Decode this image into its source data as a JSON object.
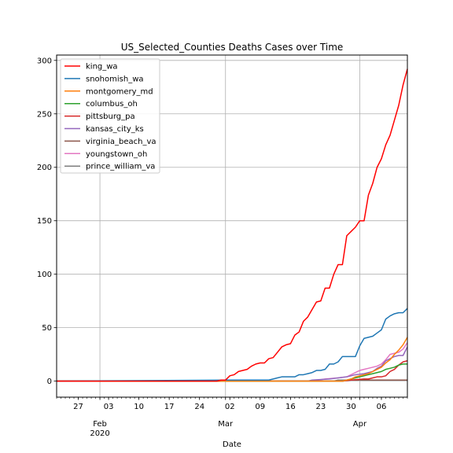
{
  "chart_data": {
    "type": "line",
    "title": "US_Selected_Counties Deaths Cases over Time",
    "xlabel": "Date",
    "ylabel": "",
    "x_start": "2020-01-22",
    "x_end": "2020-04-12",
    "xlim": [
      "2020-01-22",
      "2020-04-12"
    ],
    "ylim": [
      -15,
      305
    ],
    "y_ticks": [
      0,
      50,
      100,
      150,
      200,
      250,
      300
    ],
    "x_minor_ticks": [
      {
        "date": "2020-01-27",
        "label": "27"
      },
      {
        "date": "2020-02-03",
        "label": "03"
      },
      {
        "date": "2020-02-10",
        "label": "10"
      },
      {
        "date": "2020-02-17",
        "label": "17"
      },
      {
        "date": "2020-02-24",
        "label": "24"
      },
      {
        "date": "2020-03-02",
        "label": "02"
      },
      {
        "date": "2020-03-09",
        "label": "09"
      },
      {
        "date": "2020-03-16",
        "label": "16"
      },
      {
        "date": "2020-03-23",
        "label": "23"
      },
      {
        "date": "2020-03-30",
        "label": "30"
      },
      {
        "date": "2020-04-06",
        "label": "06"
      }
    ],
    "x_major_ticks": [
      {
        "date": "2020-02-01",
        "label": "Feb",
        "sublabel": "2020"
      },
      {
        "date": "2020-03-01",
        "label": "Mar",
        "sublabel": ""
      },
      {
        "date": "2020-04-01",
        "label": "Apr",
        "sublabel": ""
      }
    ],
    "grid": true,
    "legend_position": "top-left",
    "series": [
      {
        "name": "king_wa",
        "color": "#ff0000",
        "points": [
          [
            "2020-01-22",
            0
          ],
          [
            "2020-02-28",
            0
          ],
          [
            "2020-02-29",
            1
          ],
          [
            "2020-03-01",
            1
          ],
          [
            "2020-03-02",
            5
          ],
          [
            "2020-03-03",
            6
          ],
          [
            "2020-03-04",
            9
          ],
          [
            "2020-03-05",
            10
          ],
          [
            "2020-03-06",
            11
          ],
          [
            "2020-03-07",
            14
          ],
          [
            "2020-03-08",
            16
          ],
          [
            "2020-03-09",
            17
          ],
          [
            "2020-03-10",
            17
          ],
          [
            "2020-03-11",
            21
          ],
          [
            "2020-03-12",
            22
          ],
          [
            "2020-03-13",
            27
          ],
          [
            "2020-03-14",
            32
          ],
          [
            "2020-03-15",
            34
          ],
          [
            "2020-03-16",
            35
          ],
          [
            "2020-03-17",
            43
          ],
          [
            "2020-03-18",
            46
          ],
          [
            "2020-03-19",
            56
          ],
          [
            "2020-03-20",
            60
          ],
          [
            "2020-03-21",
            67
          ],
          [
            "2020-03-22",
            74
          ],
          [
            "2020-03-23",
            75
          ],
          [
            "2020-03-24",
            87
          ],
          [
            "2020-03-25",
            87
          ],
          [
            "2020-03-26",
            100
          ],
          [
            "2020-03-27",
            109
          ],
          [
            "2020-03-28",
            109
          ],
          [
            "2020-03-29",
            136
          ],
          [
            "2020-03-30",
            140
          ],
          [
            "2020-03-31",
            144
          ],
          [
            "2020-04-01",
            150
          ],
          [
            "2020-04-02",
            150
          ],
          [
            "2020-04-03",
            174
          ],
          [
            "2020-04-04",
            185
          ],
          [
            "2020-04-05",
            200
          ],
          [
            "2020-04-06",
            208
          ],
          [
            "2020-04-07",
            221
          ],
          [
            "2020-04-08",
            230
          ],
          [
            "2020-04-09",
            244
          ],
          [
            "2020-04-10",
            258
          ],
          [
            "2020-04-11",
            277
          ],
          [
            "2020-04-12",
            292
          ]
        ]
      },
      {
        "name": "snohomish_wa",
        "color": "#1f77b4",
        "points": [
          [
            "2020-01-22",
            0
          ],
          [
            "2020-03-02",
            1
          ],
          [
            "2020-03-11",
            1
          ],
          [
            "2020-03-12",
            2
          ],
          [
            "2020-03-13",
            3
          ],
          [
            "2020-03-14",
            4
          ],
          [
            "2020-03-16",
            4
          ],
          [
            "2020-03-17",
            4
          ],
          [
            "2020-03-18",
            6
          ],
          [
            "2020-03-19",
            6
          ],
          [
            "2020-03-20",
            7
          ],
          [
            "2020-03-21",
            8
          ],
          [
            "2020-03-22",
            10
          ],
          [
            "2020-03-23",
            10
          ],
          [
            "2020-03-24",
            11
          ],
          [
            "2020-03-25",
            16
          ],
          [
            "2020-03-26",
            16
          ],
          [
            "2020-03-27",
            18
          ],
          [
            "2020-03-28",
            23
          ],
          [
            "2020-03-29",
            23
          ],
          [
            "2020-03-30",
            23
          ],
          [
            "2020-03-31",
            23
          ],
          [
            "2020-04-01",
            33
          ],
          [
            "2020-04-02",
            40
          ],
          [
            "2020-04-03",
            41
          ],
          [
            "2020-04-04",
            42
          ],
          [
            "2020-04-05",
            45
          ],
          [
            "2020-04-06",
            48
          ],
          [
            "2020-04-07",
            58
          ],
          [
            "2020-04-08",
            61
          ],
          [
            "2020-04-09",
            63
          ],
          [
            "2020-04-10",
            64
          ],
          [
            "2020-04-11",
            64
          ],
          [
            "2020-04-12",
            68
          ]
        ]
      },
      {
        "name": "montgomery_md",
        "color": "#ff7f0e",
        "points": [
          [
            "2020-01-22",
            0
          ],
          [
            "2020-03-28",
            0
          ],
          [
            "2020-03-29",
            1
          ],
          [
            "2020-03-30",
            2
          ],
          [
            "2020-03-31",
            4
          ],
          [
            "2020-04-01",
            5
          ],
          [
            "2020-04-02",
            6
          ],
          [
            "2020-04-03",
            7
          ],
          [
            "2020-04-04",
            9
          ],
          [
            "2020-04-05",
            11
          ],
          [
            "2020-04-06",
            13
          ],
          [
            "2020-04-07",
            17
          ],
          [
            "2020-04-08",
            20
          ],
          [
            "2020-04-09",
            25
          ],
          [
            "2020-04-10",
            29
          ],
          [
            "2020-04-11",
            34
          ],
          [
            "2020-04-12",
            41
          ]
        ]
      },
      {
        "name": "columbus_oh",
        "color": "#2ca02c",
        "points": [
          [
            "2020-01-22",
            0
          ],
          [
            "2020-03-28",
            0
          ],
          [
            "2020-03-29",
            1
          ],
          [
            "2020-03-30",
            2
          ],
          [
            "2020-03-31",
            3
          ],
          [
            "2020-04-01",
            4
          ],
          [
            "2020-04-02",
            5
          ],
          [
            "2020-04-03",
            6
          ],
          [
            "2020-04-04",
            7
          ],
          [
            "2020-04-05",
            8
          ],
          [
            "2020-04-06",
            9
          ],
          [
            "2020-04-07",
            11
          ],
          [
            "2020-04-08",
            12
          ],
          [
            "2020-04-09",
            13
          ],
          [
            "2020-04-10",
            15
          ],
          [
            "2020-04-11",
            16
          ],
          [
            "2020-04-12",
            16
          ]
        ]
      },
      {
        "name": "pittsburg_pa",
        "color": "#d62728",
        "points": [
          [
            "2020-01-22",
            0
          ],
          [
            "2020-03-28",
            0
          ],
          [
            "2020-03-30",
            1
          ],
          [
            "2020-04-02",
            2
          ],
          [
            "2020-04-03",
            2
          ],
          [
            "2020-04-04",
            3
          ],
          [
            "2020-04-05",
            4
          ],
          [
            "2020-04-06",
            4
          ],
          [
            "2020-04-07",
            5
          ],
          [
            "2020-04-08",
            9
          ],
          [
            "2020-04-09",
            11
          ],
          [
            "2020-04-10",
            15
          ],
          [
            "2020-04-11",
            18
          ],
          [
            "2020-04-12",
            19
          ]
        ]
      },
      {
        "name": "kansas_city_ks",
        "color": "#9467bd",
        "points": [
          [
            "2020-01-22",
            0
          ],
          [
            "2020-03-20",
            0
          ],
          [
            "2020-03-21",
            1
          ],
          [
            "2020-03-25",
            2
          ],
          [
            "2020-03-27",
            3
          ],
          [
            "2020-03-29",
            4
          ],
          [
            "2020-03-31",
            6
          ],
          [
            "2020-04-02",
            7
          ],
          [
            "2020-04-03",
            8
          ],
          [
            "2020-04-04",
            9
          ],
          [
            "2020-04-05",
            12
          ],
          [
            "2020-04-06",
            14
          ],
          [
            "2020-04-07",
            19
          ],
          [
            "2020-04-08",
            21
          ],
          [
            "2020-04-09",
            23
          ],
          [
            "2020-04-10",
            24
          ],
          [
            "2020-04-11",
            24
          ],
          [
            "2020-04-12",
            32
          ]
        ]
      },
      {
        "name": "virginia_beach_va",
        "color": "#8c564b",
        "points": [
          [
            "2020-01-22",
            0
          ],
          [
            "2020-03-28",
            0
          ],
          [
            "2020-03-29",
            1
          ],
          [
            "2020-04-12",
            1
          ]
        ]
      },
      {
        "name": "youngstown_oh",
        "color": "#e377c2",
        "points": [
          [
            "2020-01-22",
            0
          ],
          [
            "2020-03-21",
            0
          ],
          [
            "2020-03-24",
            2
          ],
          [
            "2020-03-27",
            3
          ],
          [
            "2020-03-29",
            4
          ],
          [
            "2020-03-31",
            8
          ],
          [
            "2020-04-01",
            10
          ],
          [
            "2020-04-02",
            11
          ],
          [
            "2020-04-03",
            12
          ],
          [
            "2020-04-04",
            13
          ],
          [
            "2020-04-05",
            14
          ],
          [
            "2020-04-06",
            16
          ],
          [
            "2020-04-07",
            20
          ],
          [
            "2020-04-08",
            25
          ],
          [
            "2020-04-09",
            26
          ],
          [
            "2020-04-10",
            27
          ],
          [
            "2020-04-11",
            30
          ],
          [
            "2020-04-12",
            36
          ]
        ]
      },
      {
        "name": "prince_william_va",
        "color": "#7f7f7f",
        "points": [
          [
            "2020-01-22",
            0
          ],
          [
            "2020-03-26",
            0
          ],
          [
            "2020-03-27",
            1
          ],
          [
            "2020-04-12",
            1
          ]
        ]
      }
    ]
  }
}
